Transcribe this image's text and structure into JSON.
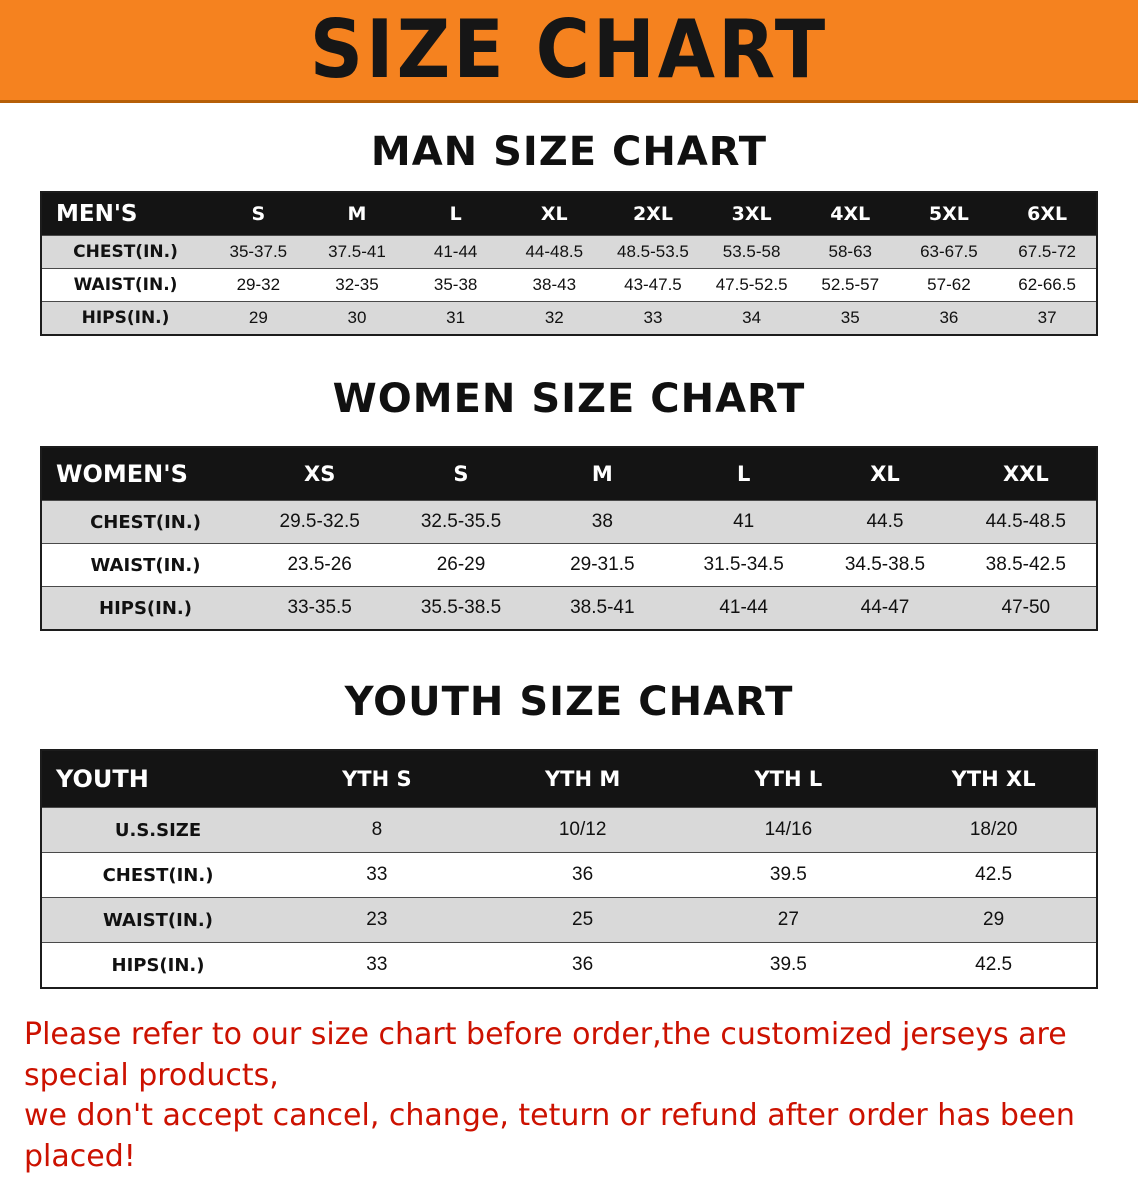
{
  "banner": {
    "title": "SIZE CHART"
  },
  "sections": [
    {
      "heading": "MAN SIZE CHART",
      "table": {
        "name": "mens",
        "header_label": "MEN'S",
        "columns": [
          "S",
          "M",
          "L",
          "XL",
          "2XL",
          "3XL",
          "4XL",
          "5XL",
          "6XL"
        ],
        "rows": [
          {
            "label": "CHEST(IN.)",
            "shaded": true,
            "values": [
              "35-37.5",
              "37.5-41",
              "41-44",
              "44-48.5",
              "48.5-53.5",
              "53.5-58",
              "58-63",
              "63-67.5",
              "67.5-72"
            ]
          },
          {
            "label": "WAIST(IN.)",
            "shaded": false,
            "values": [
              "29-32",
              "32-35",
              "35-38",
              "38-43",
              "43-47.5",
              "47.5-52.5",
              "52.5-57",
              "57-62",
              "62-66.5"
            ]
          },
          {
            "label": "HIPS(IN.)",
            "shaded": true,
            "values": [
              "29",
              "30",
              "31",
              "32",
              "33",
              "34",
              "35",
              "36",
              "37"
            ]
          }
        ]
      }
    },
    {
      "heading": "WOMEN SIZE CHART",
      "table": {
        "name": "womens",
        "header_label": "WOMEN'S",
        "columns": [
          "XS",
          "S",
          "M",
          "L",
          "XL",
          "XXL"
        ],
        "rows": [
          {
            "label": "CHEST(IN.)",
            "shaded": true,
            "values": [
              "29.5-32.5",
              "32.5-35.5",
              "38",
              "41",
              "44.5",
              "44.5-48.5"
            ]
          },
          {
            "label": "WAIST(IN.)",
            "shaded": false,
            "values": [
              "23.5-26",
              "26-29",
              "29-31.5",
              "31.5-34.5",
              "34.5-38.5",
              "38.5-42.5"
            ]
          },
          {
            "label": "HIPS(IN.)",
            "shaded": true,
            "values": [
              "33-35.5",
              "35.5-38.5",
              "38.5-41",
              "41-44",
              "44-47",
              "47-50"
            ]
          }
        ]
      }
    },
    {
      "heading": "YOUTH SIZE CHART",
      "table": {
        "name": "youth",
        "header_label": "YOUTH",
        "columns": [
          "YTH S",
          "YTH M",
          "YTH L",
          "YTH XL"
        ],
        "rows": [
          {
            "label": "U.S.SIZE",
            "shaded": true,
            "values": [
              "8",
              "10/12",
              "14/16",
              "18/20"
            ]
          },
          {
            "label": "CHEST(IN.)",
            "shaded": false,
            "values": [
              "33",
              "36",
              "39.5",
              "42.5"
            ]
          },
          {
            "label": "WAIST(IN.)",
            "shaded": true,
            "values": [
              "23",
              "25",
              "27",
              "29"
            ]
          },
          {
            "label": "HIPS(IN.)",
            "shaded": false,
            "values": [
              "33",
              "36",
              "39.5",
              "42.5"
            ]
          }
        ]
      }
    }
  ],
  "footer": {
    "lines": [
      "Please refer to our size chart before order,the customized jerseys are special products,",
      "we don't accept cancel, change, teturn or refund after order has been placed!"
    ]
  },
  "colors": {
    "banner_orange": "#f5821f",
    "banner_edge": "#b65f07",
    "title_black": "#161616",
    "header_black": "#141414",
    "row_shade": "#d9d9d9",
    "footer_red": "#cc1100"
  }
}
